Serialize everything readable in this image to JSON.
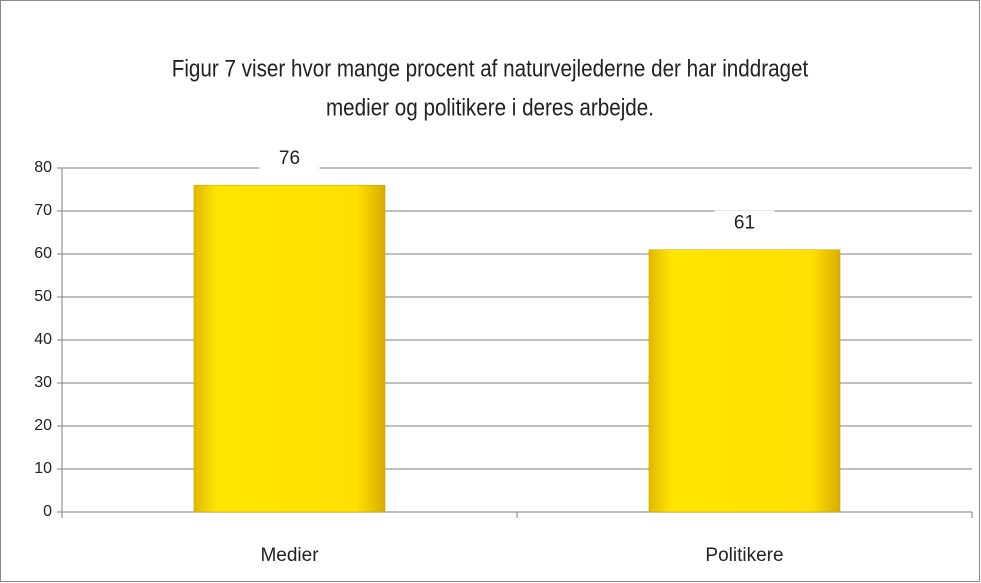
{
  "chart_data": {
    "type": "bar",
    "title": [
      "Figur 7 viser hvor mange procent af naturvejlederne der har inddraget",
      "medier og politikere i deres arbejde."
    ],
    "categories": [
      "Medier",
      "Politikere"
    ],
    "values": [
      76,
      61
    ],
    "color": "#ffe000",
    "ylim": [
      0,
      80
    ],
    "yticks": [
      0,
      10,
      20,
      30,
      40,
      50,
      60,
      70,
      80
    ],
    "grid": true
  }
}
